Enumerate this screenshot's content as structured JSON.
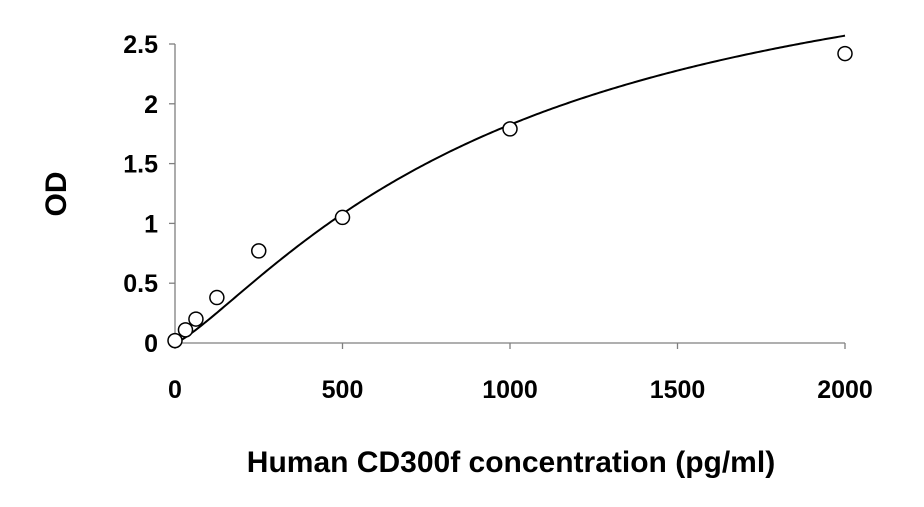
{
  "chart_data": {
    "type": "scatter",
    "title": "",
    "xlabel": "Human CD300f concentration (pg/ml)",
    "ylabel": "OD",
    "xlim": [
      0,
      2000
    ],
    "ylim": [
      0,
      2.5
    ],
    "x_ticks": [
      0,
      500,
      1000,
      1500,
      2000
    ],
    "y_ticks": [
      0,
      0.5,
      1,
      1.5,
      2,
      2.5
    ],
    "x_tick_labels": [
      "0",
      "500",
      "1000",
      "1500",
      "2000"
    ],
    "y_tick_labels": [
      "0",
      "0.5",
      "1",
      "1.5",
      "2",
      "2.5"
    ],
    "grid": false,
    "legend": "none",
    "series": [
      {
        "marker": "open-circle",
        "color": "#000000",
        "points": [
          {
            "x": 0,
            "y": 0.02
          },
          {
            "x": 31.25,
            "y": 0.11
          },
          {
            "x": 62.5,
            "y": 0.2
          },
          {
            "x": 125,
            "y": 0.38
          },
          {
            "x": 250,
            "y": 0.77
          },
          {
            "x": 500,
            "y": 1.05
          },
          {
            "x": 1000,
            "y": 1.79
          },
          {
            "x": 2000,
            "y": 2.42
          }
        ]
      }
    ],
    "fit_curve": {
      "kind": "four-parameter-logistic",
      "color": "#000000",
      "params": {
        "a": 0.0,
        "b": 1.25,
        "c": 1000,
        "d": 3.65
      }
    }
  }
}
